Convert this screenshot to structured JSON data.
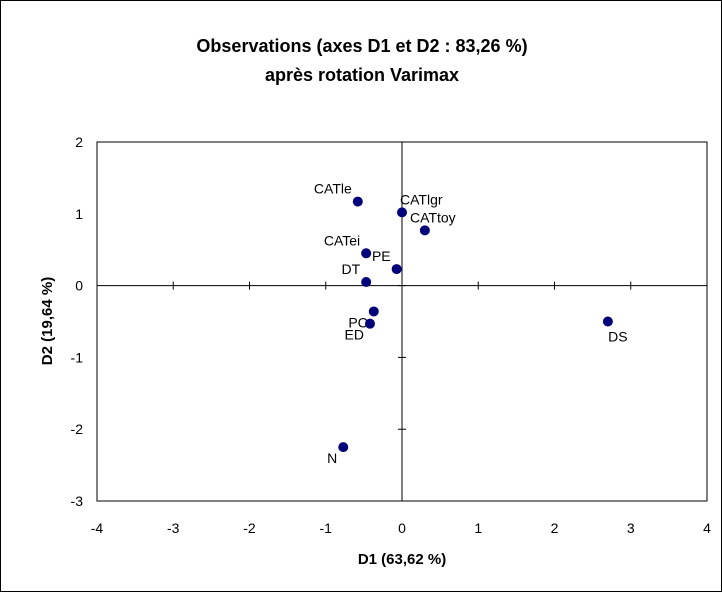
{
  "chart_data": {
    "type": "scatter",
    "title_lines": [
      "Observations (axes D1 et D2 : 83,26 %)",
      "après rotation Varimax"
    ],
    "xlabel": "D1 (63,62 %)",
    "ylabel": "D2 (19,64 %)",
    "xlim": [
      -4,
      4
    ],
    "ylim": [
      -3,
      2
    ],
    "x_ticks": [
      -4,
      -3,
      -2,
      -1,
      0,
      1,
      2,
      3,
      4
    ],
    "y_ticks": [
      2,
      1,
      0,
      -1,
      -2,
      -3
    ],
    "grid": false,
    "marker_color": "#00007f",
    "points": [
      {
        "label": "CATle",
        "x": -0.58,
        "y": 1.17,
        "label_pos": "above-left"
      },
      {
        "label": "CATlgr",
        "x": 0.0,
        "y": 1.02,
        "label_pos": "above-right"
      },
      {
        "label": "CATtoy",
        "x": 0.3,
        "y": 0.77,
        "label_pos": "above"
      },
      {
        "label": "CATei",
        "x": -0.47,
        "y": 0.45,
        "label_pos": "above-left"
      },
      {
        "label": "PE",
        "x": -0.07,
        "y": 0.23,
        "label_pos": "above-left"
      },
      {
        "label": "DT",
        "x": -0.47,
        "y": 0.05,
        "label_pos": "above-left"
      },
      {
        "label": "PC",
        "x": -0.37,
        "y": -0.36,
        "label_pos": "below-left"
      },
      {
        "label": "ED",
        "x": -0.42,
        "y": -0.53,
        "label_pos": "below-left"
      },
      {
        "label": "DS",
        "x": 2.7,
        "y": -0.5,
        "label_pos": "below"
      },
      {
        "label": "N",
        "x": -0.77,
        "y": -2.25,
        "label_pos": "below-left"
      }
    ]
  }
}
